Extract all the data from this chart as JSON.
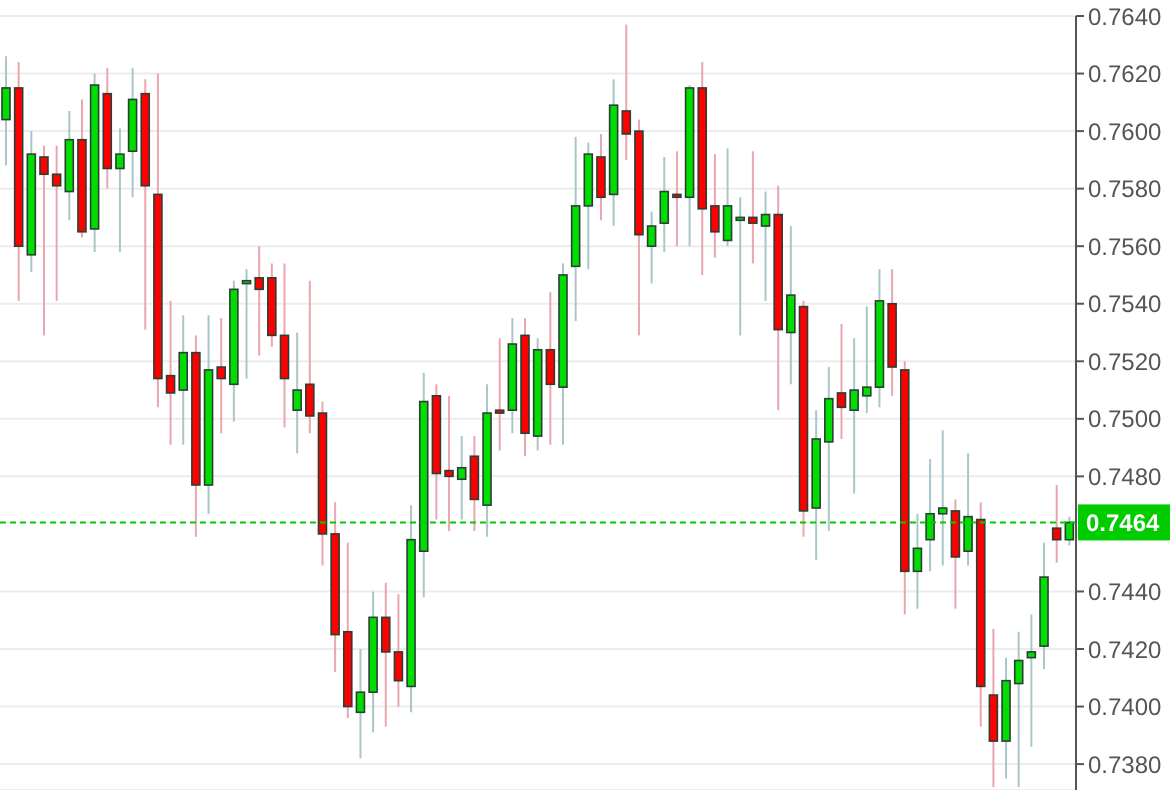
{
  "chart_data": {
    "type": "candlestick",
    "categories": [
      null,
      null,
      null,
      null,
      null,
      null,
      null,
      null,
      null,
      null,
      null,
      null,
      null,
      null,
      null,
      null,
      null,
      null,
      null,
      null,
      null,
      null,
      null,
      null,
      null,
      null,
      null,
      null,
      null,
      null,
      null,
      null,
      null,
      null,
      null,
      null,
      null,
      null,
      null,
      null,
      null,
      null,
      null,
      null,
      null,
      null,
      null,
      null,
      null,
      null,
      null,
      null,
      null,
      null,
      null,
      null,
      null,
      null,
      null,
      null,
      null,
      null,
      null,
      null,
      null,
      null,
      null,
      null,
      null,
      null,
      null,
      null,
      null,
      null,
      null,
      null,
      null,
      null,
      null,
      null,
      null,
      null,
      null,
      null,
      null
    ],
    "ohlc": [
      [
        0.7604,
        0.7626,
        0.7588,
        0.7615
      ],
      [
        0.7615,
        0.7624,
        0.7541,
        0.756
      ],
      [
        0.7557,
        0.76,
        0.7551,
        0.7592
      ],
      [
        0.7591,
        0.7595,
        0.7529,
        0.7585
      ],
      [
        0.7585,
        0.7595,
        0.7541,
        0.7581
      ],
      [
        0.7579,
        0.7607,
        0.7569,
        0.7597
      ],
      [
        0.7597,
        0.7611,
        0.7563,
        0.7565
      ],
      [
        0.7566,
        0.762,
        0.7558,
        0.7616
      ],
      [
        0.7613,
        0.7622,
        0.758,
        0.7587
      ],
      [
        0.7587,
        0.7601,
        0.7558,
        0.7592
      ],
      [
        0.7593,
        0.7622,
        0.7577,
        0.7611
      ],
      [
        0.7613,
        0.7618,
        0.7531,
        0.7581
      ],
      [
        0.7578,
        0.762,
        0.7504,
        0.7514
      ],
      [
        0.7515,
        0.7541,
        0.7491,
        0.7509
      ],
      [
        0.751,
        0.7536,
        0.7491,
        0.7523
      ],
      [
        0.7523,
        0.7529,
        0.7459,
        0.7477
      ],
      [
        0.7477,
        0.7536,
        0.7467,
        0.7517
      ],
      [
        0.7518,
        0.7535,
        0.7495,
        0.7514
      ],
      [
        0.7512,
        0.7548,
        0.7499,
        0.7545
      ],
      [
        0.7547,
        0.7552,
        0.7514,
        0.7548
      ],
      [
        0.7549,
        0.756,
        0.7522,
        0.7545
      ],
      [
        0.7549,
        0.7554,
        0.7525,
        0.7529
      ],
      [
        0.7529,
        0.7554,
        0.7497,
        0.7514
      ],
      [
        0.7503,
        0.753,
        0.7488,
        0.751
      ],
      [
        0.7512,
        0.7548,
        0.7495,
        0.7501
      ],
      [
        0.7502,
        0.7506,
        0.7449,
        0.746
      ],
      [
        0.746,
        0.7471,
        0.7412,
        0.7425
      ],
      [
        0.7426,
        0.7457,
        0.7396,
        0.74
      ],
      [
        0.7398,
        0.742,
        0.7382,
        0.7405
      ],
      [
        0.7405,
        0.744,
        0.7391,
        0.7431
      ],
      [
        0.7431,
        0.7443,
        0.7393,
        0.7419
      ],
      [
        0.7419,
        0.7439,
        0.74,
        0.7409
      ],
      [
        0.7407,
        0.747,
        0.7398,
        0.7458
      ],
      [
        0.7454,
        0.7516,
        0.7438,
        0.7506
      ],
      [
        0.7508,
        0.7512,
        0.7465,
        0.7481
      ],
      [
        0.7482,
        0.7508,
        0.7461,
        0.748
      ],
      [
        0.7479,
        0.7494,
        0.7465,
        0.7483
      ],
      [
        0.7487,
        0.7494,
        0.7461,
        0.7472
      ],
      [
        0.747,
        0.7512,
        0.7459,
        0.7502
      ],
      [
        0.7503,
        0.7528,
        0.7489,
        0.7502
      ],
      [
        0.7503,
        0.7535,
        0.7495,
        0.7526
      ],
      [
        0.7529,
        0.7535,
        0.7487,
        0.7495
      ],
      [
        0.7494,
        0.7528,
        0.7489,
        0.7524
      ],
      [
        0.7524,
        0.7544,
        0.7491,
        0.7512
      ],
      [
        0.7511,
        0.7554,
        0.7491,
        0.755
      ],
      [
        0.7553,
        0.7598,
        0.7534,
        0.7574
      ],
      [
        0.7574,
        0.7596,
        0.7552,
        0.7592
      ],
      [
        0.7591,
        0.7599,
        0.7569,
        0.7577
      ],
      [
        0.7578,
        0.7618,
        0.7567,
        0.7609
      ],
      [
        0.7607,
        0.7637,
        0.759,
        0.7599
      ],
      [
        0.76,
        0.7604,
        0.7529,
        0.7564
      ],
      [
        0.756,
        0.7572,
        0.7547,
        0.7567
      ],
      [
        0.7568,
        0.7591,
        0.7558,
        0.7579
      ],
      [
        0.7578,
        0.7593,
        0.756,
        0.7577
      ],
      [
        0.7577,
        0.7616,
        0.756,
        0.7615
      ],
      [
        0.7615,
        0.7624,
        0.755,
        0.7573
      ],
      [
        0.7574,
        0.7592,
        0.7556,
        0.7565
      ],
      [
        0.7562,
        0.7594,
        0.756,
        0.7574
      ],
      [
        0.7569,
        0.7577,
        0.7529,
        0.757
      ],
      [
        0.757,
        0.7593,
        0.7554,
        0.7568
      ],
      [
        0.7567,
        0.7579,
        0.7541,
        0.7571
      ],
      [
        0.7571,
        0.7581,
        0.7503,
        0.7531
      ],
      [
        0.753,
        0.7567,
        0.7512,
        0.7543
      ],
      [
        0.7539,
        0.7541,
        0.7459,
        0.7468
      ],
      [
        0.7469,
        0.7503,
        0.7451,
        0.7493
      ],
      [
        0.7492,
        0.7518,
        0.7461,
        0.7507
      ],
      [
        0.7509,
        0.7533,
        0.7493,
        0.7504
      ],
      [
        0.7503,
        0.7528,
        0.7474,
        0.751
      ],
      [
        0.7508,
        0.7539,
        0.7502,
        0.7511
      ],
      [
        0.7511,
        0.7552,
        0.7504,
        0.7541
      ],
      [
        0.754,
        0.7552,
        0.7508,
        0.7518
      ],
      [
        0.7517,
        0.752,
        0.7432,
        0.7447
      ],
      [
        0.7447,
        0.7467,
        0.7434,
        0.7455
      ],
      [
        0.7458,
        0.7486,
        0.7447,
        0.7467
      ],
      [
        0.7467,
        0.7496,
        0.7449,
        0.7469
      ],
      [
        0.7468,
        0.7472,
        0.7434,
        0.7452
      ],
      [
        0.7454,
        0.7488,
        0.7449,
        0.7466
      ],
      [
        0.7465,
        0.7471,
        0.7393,
        0.7407
      ],
      [
        0.7404,
        0.7427,
        0.7372,
        0.7388
      ],
      [
        0.7388,
        0.7417,
        0.7375,
        0.7409
      ],
      [
        0.7408,
        0.7426,
        0.7372,
        0.7416
      ],
      [
        0.7417,
        0.7432,
        0.7386,
        0.7419
      ],
      [
        0.7421,
        0.7457,
        0.7413,
        0.7445
      ],
      [
        0.7462,
        0.7477,
        0.745,
        0.7458
      ],
      [
        0.7458,
        0.7466,
        0.7456,
        0.7464
      ]
    ],
    "ylim": [
      0.7371,
      0.764
    ],
    "yticks": [
      {
        "value": 0.738,
        "label": "0.7380"
      },
      {
        "value": 0.74,
        "label": "0.7400"
      },
      {
        "value": 0.742,
        "label": "0.7420"
      },
      {
        "value": 0.744,
        "label": "0.7440"
      },
      {
        "value": 0.748,
        "label": "0.7480"
      },
      {
        "value": 0.75,
        "label": "0.7500"
      },
      {
        "value": 0.752,
        "label": "0.7520"
      },
      {
        "value": 0.754,
        "label": "0.7540"
      },
      {
        "value": 0.756,
        "label": "0.7560"
      },
      {
        "value": 0.758,
        "label": "0.7580"
      },
      {
        "value": 0.76,
        "label": "0.7600"
      },
      {
        "value": 0.762,
        "label": "0.7620"
      },
      {
        "value": 0.764,
        "label": "0.7640"
      }
    ],
    "ref_lines": [
      {
        "axis": "y",
        "value": 0.7464,
        "label": "0.7464",
        "color": "#00cc00",
        "line_style": "dashed"
      }
    ],
    "grid": "y",
    "tick_labels": "y"
  }
}
